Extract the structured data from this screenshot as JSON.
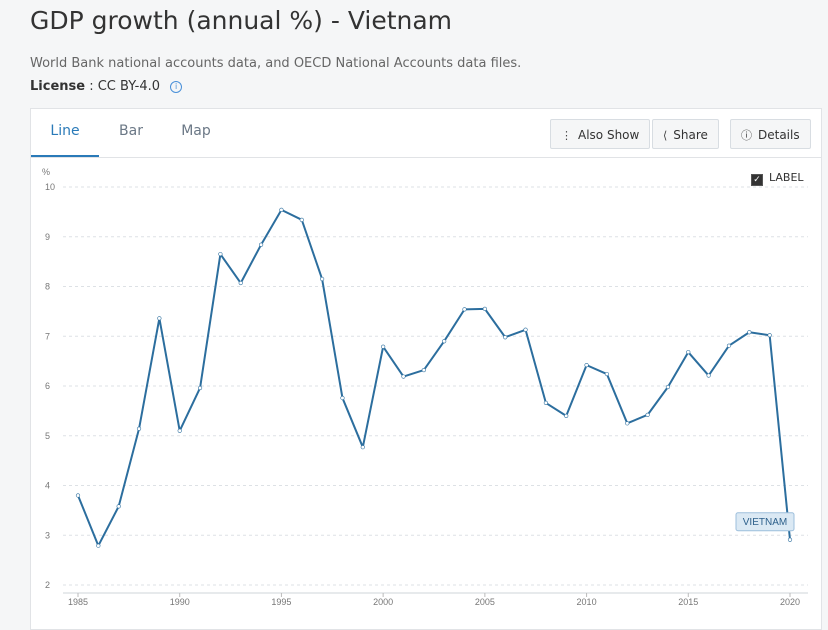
{
  "page": {
    "title": "GDP growth (annual %) - Vietnam",
    "source": "World Bank national accounts data, and OECD National Accounts data files.",
    "license_label": "License",
    "license_value": ": CC BY-4.0",
    "license_info_icon": "info-icon"
  },
  "tabs": [
    {
      "label": "Line",
      "active": true
    },
    {
      "label": "Bar",
      "active": false
    },
    {
      "label": "Map",
      "active": false
    }
  ],
  "toolbar": {
    "also_show": {
      "label": "Also Show",
      "icon": "vertical-dots-icon"
    },
    "share": {
      "label": "Share",
      "icon": "share-icon"
    },
    "details": {
      "label": "Details",
      "icon": "info-icon"
    }
  },
  "label_toggle": {
    "label": "LABEL",
    "checked": true
  },
  "colors": {
    "line": "#2c6e9e",
    "accent": "#2a7ab8",
    "end_label_bg": "#dbe9f4"
  },
  "chart_data": {
    "type": "line",
    "ylabel": "%",
    "xlabel": "",
    "ylim": [
      2,
      10
    ],
    "xlim": [
      1985,
      2020
    ],
    "yticks": [
      2,
      3,
      4,
      5,
      6,
      7,
      8,
      9,
      10
    ],
    "xticks": [
      1985,
      1990,
      1995,
      2000,
      2005,
      2010,
      2015,
      2020
    ],
    "grid": true,
    "series": [
      {
        "name": "VIETNAM",
        "x": [
          1985,
          1986,
          1987,
          1988,
          1989,
          1990,
          1991,
          1992,
          1993,
          1994,
          1995,
          1996,
          1997,
          1998,
          1999,
          2000,
          2001,
          2002,
          2003,
          2004,
          2005,
          2006,
          2007,
          2008,
          2009,
          2010,
          2011,
          2012,
          2013,
          2014,
          2015,
          2016,
          2017,
          2018,
          2019,
          2020
        ],
        "values": [
          3.8,
          2.79,
          3.58,
          5.14,
          7.36,
          5.1,
          5.96,
          8.65,
          8.07,
          8.84,
          9.54,
          9.34,
          8.15,
          5.76,
          4.77,
          6.79,
          6.19,
          6.32,
          6.9,
          7.54,
          7.55,
          6.98,
          7.13,
          5.66,
          5.4,
          6.42,
          6.24,
          5.25,
          5.42,
          5.98,
          6.68,
          6.21,
          6.81,
          7.08,
          7.02,
          2.91
        ]
      }
    ]
  }
}
